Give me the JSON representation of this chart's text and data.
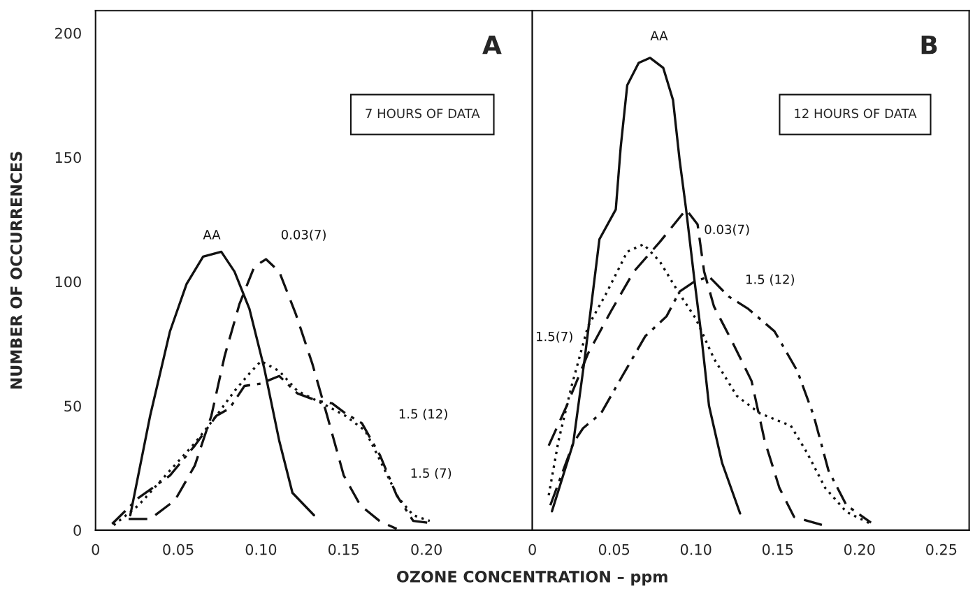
{
  "chart_data": [
    {
      "type": "line",
      "title": "A",
      "xlabel": "OZONE CONCENTRATION – ppm",
      "ylabel": "NUMBER OF OCCURRENCES",
      "xlim": [
        0,
        0.264
      ],
      "ylim": [
        0,
        209
      ],
      "xticks": [
        0,
        {
          "value": 0.05,
          "label": "0.05"
        },
        {
          "value": 0.1,
          "label": "0.10"
        },
        {
          "value": 0.15,
          "label": "0.15"
        },
        {
          "value": 0.2,
          "label": "0.20"
        }
      ],
      "yticks": [
        0,
        50,
        100,
        150,
        200
      ],
      "series": [
        {
          "name": "AA",
          "color": "#111111",
          "line_style": "solid",
          "x": [
            0.021,
            0.033,
            0.045,
            0.055,
            0.065,
            0.076,
            0.084,
            0.093,
            0.102,
            0.111,
            0.119,
            0.132
          ],
          "values": [
            6,
            46,
            80,
            99,
            110,
            112,
            104,
            89,
            65,
            36,
            15,
            6
          ]
        },
        {
          "name": "0.03(7)",
          "color": "#111111",
          "line_style": "dashed",
          "x": [
            0.02,
            0.033,
            0.048,
            0.06,
            0.07,
            0.078,
            0.087,
            0.096,
            0.103,
            0.111,
            0.121,
            0.131,
            0.14,
            0.15,
            0.16,
            0.172,
            0.182
          ],
          "values": [
            4.5,
            4.5,
            12,
            26,
            46,
            70,
            91,
            106,
            109,
            104,
            87,
            67,
            46,
            22,
            10,
            3.5,
            0.5
          ]
        },
        {
          "name": "1.5 (12)",
          "color": "#111111",
          "line_style": "dashdot",
          "x": [
            0.01,
            0.026,
            0.045,
            0.06,
            0.073,
            0.081,
            0.09,
            0.1,
            0.111,
            0.122,
            0.134,
            0.143,
            0.151,
            0.161,
            0.172,
            0.182,
            0.192,
            0.201
          ],
          "values": [
            2.5,
            13,
            22,
            34,
            46,
            49,
            58,
            59,
            62,
            55,
            52,
            51,
            47,
            43,
            30,
            14,
            3.7,
            3
          ]
        },
        {
          "name": "1.5 (7)",
          "color": "#111111",
          "line_style": "dotted",
          "x": [
            0.011,
            0.026,
            0.045,
            0.06,
            0.073,
            0.084,
            0.093,
            0.1,
            0.111,
            0.122,
            0.137,
            0.151,
            0.163,
            0.172,
            0.183,
            0.192,
            0.202
          ],
          "values": [
            2,
            10,
            24,
            35,
            46,
            56,
            63,
            68,
            64,
            56,
            51,
            46,
            40,
            28,
            13,
            6,
            3.7
          ]
        }
      ],
      "annotations": [
        "7 HOURS OF DATA"
      ]
    },
    {
      "type": "line",
      "title": "B",
      "tick_labels": "x",
      "xlim": [
        0,
        0.267
      ],
      "ylim": [
        0,
        209
      ],
      "xticks": [
        0,
        {
          "value": 0.05,
          "label": "0.05"
        },
        {
          "value": 0.1,
          "label": "0.10"
        },
        {
          "value": 0.15,
          "label": "0.15"
        },
        {
          "value": 0.2,
          "label": "0.20"
        },
        {
          "value": 0.25,
          "label": "0.25"
        }
      ],
      "yticks": [
        0,
        50,
        100,
        150,
        200
      ],
      "series": [
        {
          "name": "AA",
          "color": "#111111",
          "line_style": "solid",
          "x": [
            0.012,
            0.025,
            0.032,
            0.041,
            0.051,
            0.054,
            0.058,
            0.065,
            0.072,
            0.08,
            0.086,
            0.09,
            0.094,
            0.099,
            0.103,
            0.108,
            0.116,
            0.127
          ],
          "values": [
            7.6,
            35,
            69,
            117,
            129,
            154,
            179,
            188,
            190,
            186,
            173,
            149,
            129,
            101,
            80,
            50,
            27,
            6.7
          ]
        },
        {
          "name": "0.03(7)",
          "color": "#111111",
          "line_style": "dashed",
          "x": [
            0.01,
            0.021,
            0.034,
            0.048,
            0.062,
            0.078,
            0.094,
            0.101,
            0.105,
            0.111,
            0.122,
            0.134,
            0.142,
            0.151,
            0.16,
            0.179
          ],
          "values": [
            34,
            50,
            71,
            88,
            104,
            116,
            129,
            123,
            104,
            90,
            76,
            60,
            36,
            17,
            5.3,
            1.7
          ]
        },
        {
          "name": "1.5 (12)",
          "color": "#111111",
          "line_style": "dashdot",
          "x": [
            0.011,
            0.025,
            0.031,
            0.042,
            0.055,
            0.069,
            0.082,
            0.09,
            0.099,
            0.108,
            0.12,
            0.132,
            0.148,
            0.162,
            0.172,
            0.181,
            0.192,
            0.207
          ],
          "values": [
            10,
            35,
            41,
            47,
            62,
            78,
            86,
            96,
            100,
            102,
            94,
            89,
            80,
            64,
            46,
            24,
            10,
            3
          ]
        },
        {
          "name": "1.5(7)",
          "color": "#111111",
          "line_style": "dotted",
          "x": [
            0.01,
            0.016,
            0.024,
            0.034,
            0.045,
            0.058,
            0.068,
            0.078,
            0.089,
            0.1,
            0.111,
            0.125,
            0.139,
            0.158,
            0.168,
            0.179,
            0.192,
            0.207
          ],
          "values": [
            14,
            36,
            58,
            82,
            95,
            112,
            115,
            108,
            96,
            85,
            69,
            54,
            47,
            42,
            31,
            17,
            7.3,
            2.5
          ]
        }
      ],
      "annotations": [
        "12 HOURS OF DATA"
      ]
    }
  ]
}
